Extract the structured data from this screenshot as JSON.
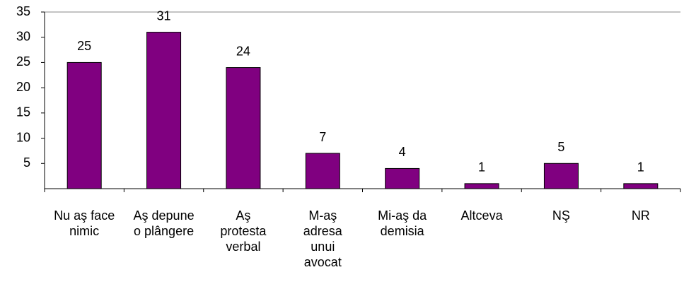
{
  "chart_data": {
    "type": "bar",
    "categories": [
      "Nu aş face nimic",
      "Aş depune o plângere",
      "Aş protesta verbal",
      "M-aş adresa unui avocat",
      "Mi-aş da demisia",
      "Altceva",
      "NŞ",
      "NR"
    ],
    "values": [
      25,
      31,
      24,
      7,
      4,
      1,
      5,
      1
    ],
    "color": "#800080",
    "ylim": [
      0,
      35
    ],
    "yticks": [
      5,
      10,
      15,
      20,
      25,
      30,
      35
    ],
    "grid": false
  }
}
